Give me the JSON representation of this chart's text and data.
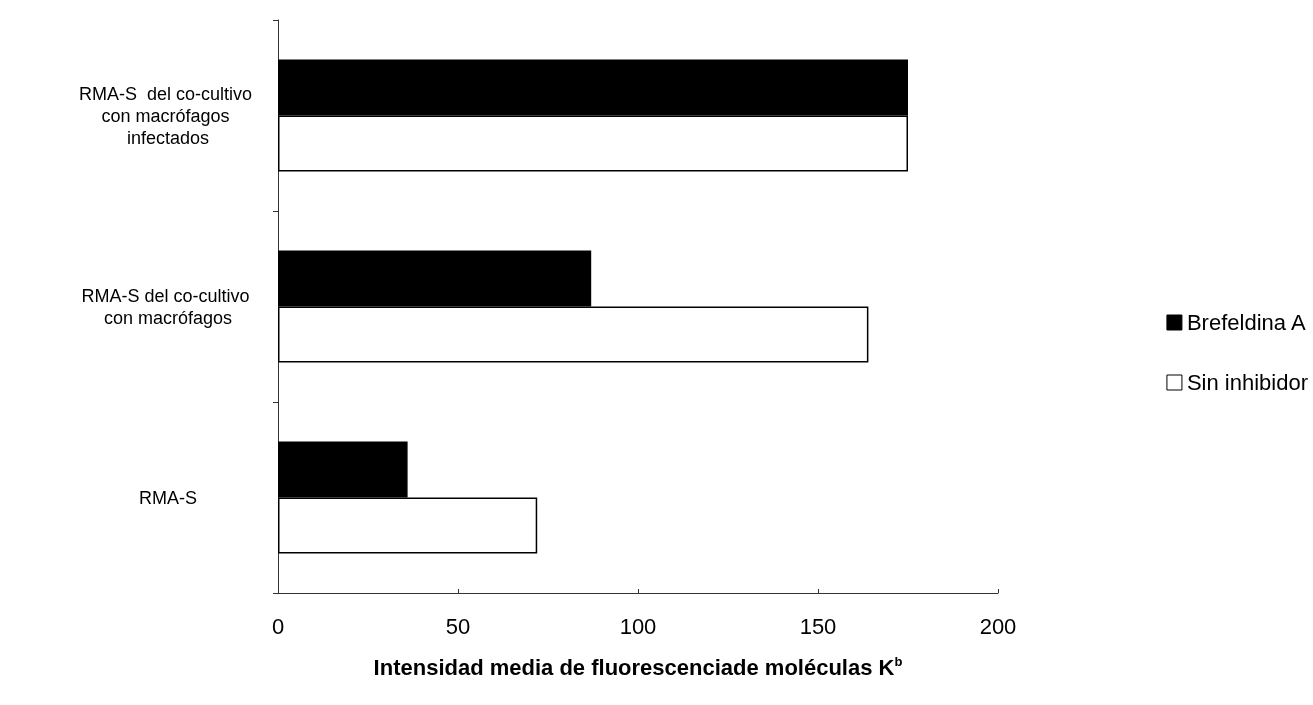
{
  "chart_data": {
    "type": "bar",
    "orientation": "horizontal",
    "xlabel": "Intensidad media de fluorescenciade moléculas K$^{b}$",
    "categories": [
      "RMA-S  del co-cultivo con macrófagos infectados",
      "RMA-S del co-cultivo con macrófagos",
      "RMA-S"
    ],
    "series": [
      {
        "name": "Brefeldina A",
        "color": "#000000",
        "values": [
          175,
          87,
          36
        ]
      },
      {
        "name": "Sin inhibidor",
        "color": "#ffffff",
        "values": [
          175,
          164,
          72
        ]
      }
    ],
    "xlim": [
      0,
      200
    ],
    "xticks": [
      0,
      50,
      100,
      150,
      200
    ],
    "grid": false,
    "legend": "right"
  }
}
